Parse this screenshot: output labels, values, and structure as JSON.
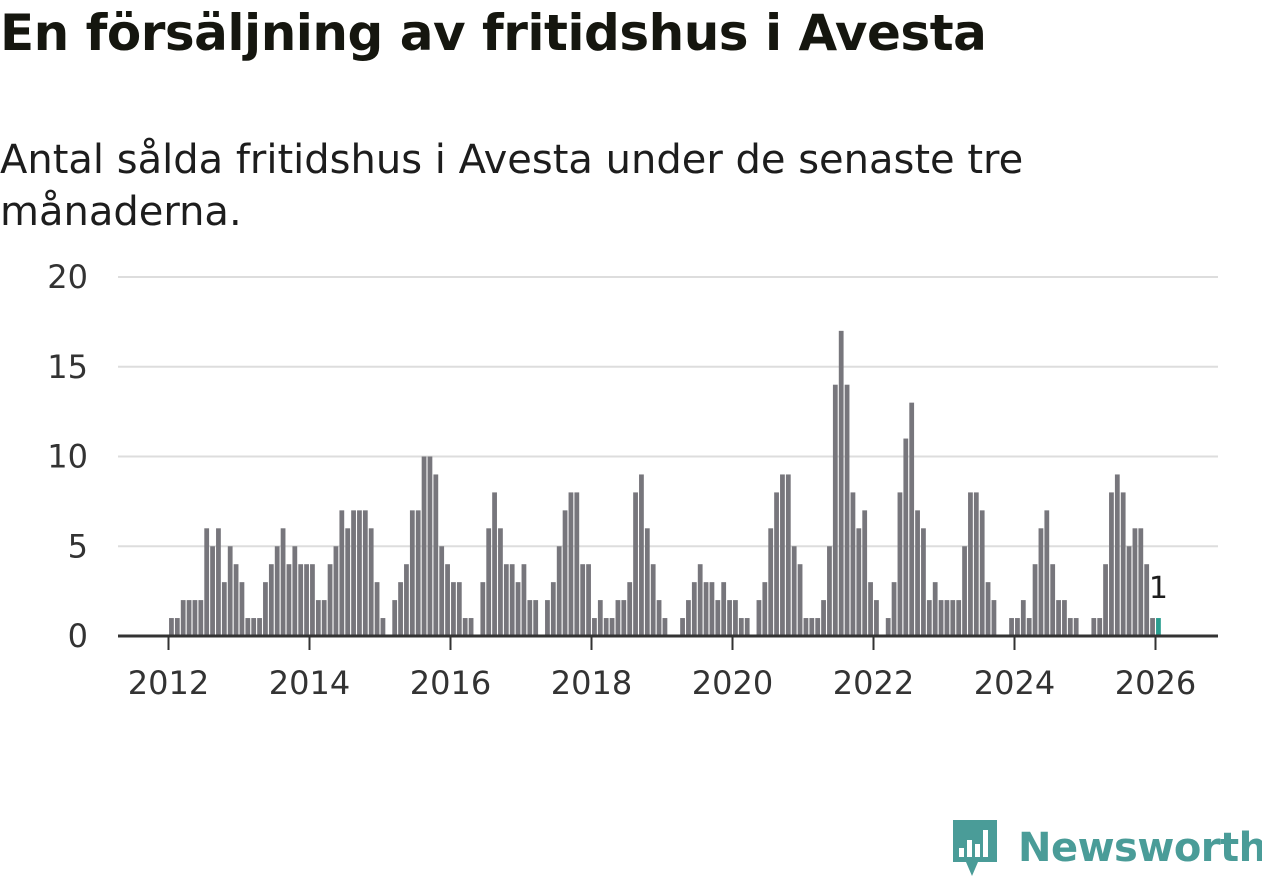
{
  "header": {
    "title": "En försäljning av fritidshus i Avesta",
    "subtitle": "Antal sålda fritidshus i Avesta under de senaste tre månaderna."
  },
  "colors": {
    "bar": "#77767c",
    "highlight": "#2a9d8f",
    "grid": "#dddddd",
    "axis": "#333333",
    "brand": "#4a9c98"
  },
  "logo": {
    "text": "Newsworthy",
    "icon": "newsworthy-chart-bubble-icon"
  },
  "chart_data": {
    "type": "bar",
    "x_start": "2012-01",
    "x_frequency": "monthly",
    "xticks": [
      "2012",
      "2014",
      "2016",
      "2018",
      "2020",
      "2022",
      "2024",
      "2026"
    ],
    "yticks": [
      0,
      5,
      10,
      15,
      20
    ],
    "ylim": [
      0,
      20
    ],
    "grid": true,
    "values": [
      1,
      1,
      2,
      2,
      2,
      2,
      6,
      5,
      6,
      3,
      5,
      4,
      3,
      1,
      1,
      1,
      3,
      4,
      5,
      6,
      4,
      5,
      4,
      4,
      4,
      2,
      2,
      4,
      5,
      7,
      6,
      7,
      7,
      7,
      6,
      3,
      1,
      0,
      2,
      3,
      4,
      7,
      7,
      10,
      10,
      9,
      5,
      4,
      3,
      3,
      1,
      1,
      0,
      3,
      6,
      8,
      6,
      4,
      4,
      3,
      4,
      2,
      2,
      0,
      2,
      3,
      5,
      7,
      8,
      8,
      4,
      4,
      1,
      2,
      1,
      1,
      2,
      2,
      3,
      8,
      9,
      6,
      4,
      2,
      1,
      0,
      0,
      1,
      2,
      3,
      4,
      3,
      3,
      2,
      3,
      2,
      2,
      1,
      1,
      0,
      2,
      3,
      6,
      8,
      9,
      9,
      5,
      4,
      1,
      1,
      1,
      2,
      5,
      14,
      17,
      14,
      8,
      6,
      7,
      3,
      2,
      0,
      1,
      3,
      8,
      11,
      13,
      7,
      6,
      2,
      3,
      2,
      2,
      2,
      2,
      5,
      8,
      8,
      7,
      3,
      2,
      0,
      0,
      1,
      1,
      2,
      1,
      4,
      6,
      7,
      4,
      2,
      2,
      1,
      1,
      0,
      0,
      1,
      1,
      4,
      8,
      9,
      8,
      5,
      6,
      6,
      4,
      1,
      1
    ],
    "highlight": {
      "label": "1",
      "value": 1
    }
  }
}
